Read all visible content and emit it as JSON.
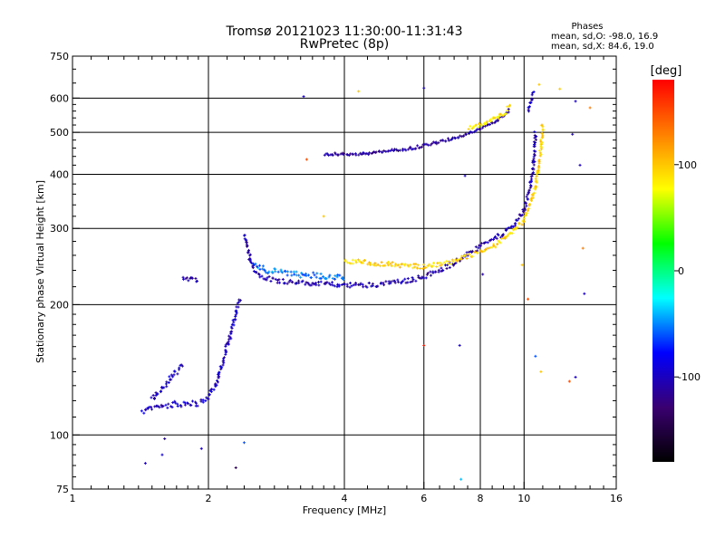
{
  "chart_data": {
    "type": "scatter",
    "title": "Tromsø 20121023 11:30:00-11:31:43",
    "subtitle": "RwPretec (8p)",
    "xlabel": "Frequency [MHz]",
    "ylabel": "Stationary phase Virtual Height [km]",
    "x_scale": "log",
    "y_scale": "log",
    "xlim": [
      1,
      16
    ],
    "ylim": [
      75,
      750
    ],
    "x_ticks": [
      1,
      2,
      4,
      6,
      8,
      10,
      16
    ],
    "x_tick_labels": [
      "1",
      "2",
      "4",
      "6",
      "8",
      "10",
      "16"
    ],
    "x_grid": [
      2,
      4,
      6,
      8,
      10
    ],
    "y_ticks": [
      75,
      100,
      200,
      300,
      400,
      500,
      600,
      750
    ],
    "y_tick_labels": [
      "75",
      "100",
      "200",
      "300",
      "400",
      "500",
      "600",
      "750"
    ],
    "y_grid": [
      100,
      200,
      300,
      400,
      500,
      600
    ],
    "grid": true,
    "stats": {
      "header": "Phases",
      "o_line": "mean, sd,O: -98.0, 16.9",
      "x_line": "mean, sd,X:  84.6, 19.0"
    },
    "colorbar": {
      "label": "[deg]",
      "min": -180,
      "max": 180,
      "ticks": [
        100,
        0,
        -100
      ],
      "tick_labels": [
        "100",
        "0",
        "-100"
      ],
      "colors": [
        "#000000",
        "#3a0070",
        "#0000ff",
        "#00ffff",
        "#00ff00",
        "#ffff00",
        "#ff8000",
        "#ff0000"
      ]
    },
    "traces": [
      {
        "name": "",
        "x": [
          1.42,
          1.5,
          1.6,
          1.7,
          1.8,
          1.9,
          1.95,
          2.0,
          2.1,
          2.2,
          2.3,
          2.35
        ],
        "y": [
          113,
          115,
          117,
          118,
          118,
          118,
          120,
          122,
          135,
          160,
          190,
          205
        ],
        "phase": -100,
        "spread": 0.03
      },
      {
        "name": "",
        "x": [
          1.5,
          1.55,
          1.6,
          1.65,
          1.7,
          1.75
        ],
        "y": [
          120,
          125,
          130,
          135,
          140,
          145
        ],
        "phase": -100,
        "spread": 0.03
      },
      {
        "name": "",
        "x": [
          2.4,
          2.45,
          2.5,
          2.6,
          2.8,
          3.0,
          3.3,
          3.6,
          4.0,
          4.5,
          5.0,
          5.5,
          6.0,
          6.5,
          7.0,
          7.5,
          8.0,
          8.5,
          9.0,
          9.5,
          10.0,
          10.3,
          10.5,
          10.6
        ],
        "y": [
          290,
          265,
          245,
          233,
          228,
          226,
          224,
          223,
          222,
          222,
          224,
          227,
          232,
          240,
          250,
          262,
          272,
          282,
          292,
          305,
          330,
          370,
          420,
          500
        ],
        "phase": -105,
        "spread": 0.025
      },
      {
        "name": "",
        "x": [
          2.5,
          2.7,
          3.0,
          3.3,
          3.6,
          4.0
        ],
        "y": [
          250,
          240,
          236,
          234,
          233,
          232
        ],
        "phase": -55,
        "spread": 0.03
      },
      {
        "name": "",
        "x": [
          4.0,
          4.5,
          5.0,
          5.5,
          6.0,
          6.5,
          7.0,
          7.5,
          8.0,
          8.5,
          9.0,
          9.5,
          10.0,
          10.5,
          10.8,
          11.0
        ],
        "y": [
          252,
          250,
          248,
          246,
          245,
          248,
          252,
          258,
          265,
          272,
          282,
          295,
          315,
          360,
          420,
          520
        ],
        "phase": 95,
        "spread": 0.025
      },
      {
        "name": "",
        "x": [
          3.6,
          4.0,
          4.5,
          5.0,
          5.5,
          6.0,
          6.5,
          7.0,
          7.5,
          8.0,
          8.5,
          9.0,
          9.3
        ],
        "y": [
          445,
          445,
          447,
          452,
          458,
          466,
          475,
          485,
          497,
          510,
          525,
          545,
          565
        ],
        "phase": -110,
        "spread": 0.015
      },
      {
        "name": "",
        "x": [
          7.5,
          8.0,
          8.5,
          9.0,
          9.3
        ],
        "y": [
          510,
          520,
          535,
          550,
          575
        ],
        "phase": 85,
        "spread": 0.02
      },
      {
        "name": "",
        "x": [
          10.2,
          10.3,
          10.4,
          10.5
        ],
        "y": [
          560,
          580,
          600,
          620
        ],
        "phase": -100,
        "spread": 0.02
      },
      {
        "name": "",
        "x": [
          1.75,
          1.8,
          1.85,
          1.9
        ],
        "y": [
          232,
          228,
          230,
          226
        ],
        "phase": -110,
        "spread": 0.02
      }
    ],
    "isolated_points": [
      {
        "x": 1.45,
        "y": 86,
        "phase": -100
      },
      {
        "x": 1.58,
        "y": 90,
        "phase": -95
      },
      {
        "x": 1.6,
        "y": 98,
        "phase": -110
      },
      {
        "x": 1.93,
        "y": 93,
        "phase": -100
      },
      {
        "x": 2.3,
        "y": 84,
        "phase": -140
      },
      {
        "x": 2.4,
        "y": 96,
        "phase": -60
      },
      {
        "x": 3.25,
        "y": 605,
        "phase": -100
      },
      {
        "x": 3.3,
        "y": 433,
        "phase": 150
      },
      {
        "x": 3.6,
        "y": 320,
        "phase": 100
      },
      {
        "x": 4.3,
        "y": 622,
        "phase": 100
      },
      {
        "x": 6.0,
        "y": 633,
        "phase": -100
      },
      {
        "x": 6.0,
        "y": 161,
        "phase": 170
      },
      {
        "x": 7.2,
        "y": 161,
        "phase": -100
      },
      {
        "x": 7.25,
        "y": 79,
        "phase": -40
      },
      {
        "x": 7.4,
        "y": 397,
        "phase": -100
      },
      {
        "x": 8.1,
        "y": 235,
        "phase": -110
      },
      {
        "x": 9.9,
        "y": 247,
        "phase": 100
      },
      {
        "x": 10.2,
        "y": 206,
        "phase": 150
      },
      {
        "x": 10.6,
        "y": 152,
        "phase": -60
      },
      {
        "x": 10.8,
        "y": 645,
        "phase": 100
      },
      {
        "x": 10.9,
        "y": 140,
        "phase": 100
      },
      {
        "x": 12.0,
        "y": 630,
        "phase": 100
      },
      {
        "x": 13.0,
        "y": 590,
        "phase": -100
      },
      {
        "x": 13.3,
        "y": 420,
        "phase": -100
      },
      {
        "x": 13.5,
        "y": 270,
        "phase": 130
      },
      {
        "x": 13.6,
        "y": 212,
        "phase": -100
      },
      {
        "x": 14.0,
        "y": 570,
        "phase": 130
      },
      {
        "x": 12.6,
        "y": 133,
        "phase": 150
      },
      {
        "x": 12.8,
        "y": 495,
        "phase": -100
      },
      {
        "x": 13.0,
        "y": 136,
        "phase": -100
      }
    ]
  }
}
